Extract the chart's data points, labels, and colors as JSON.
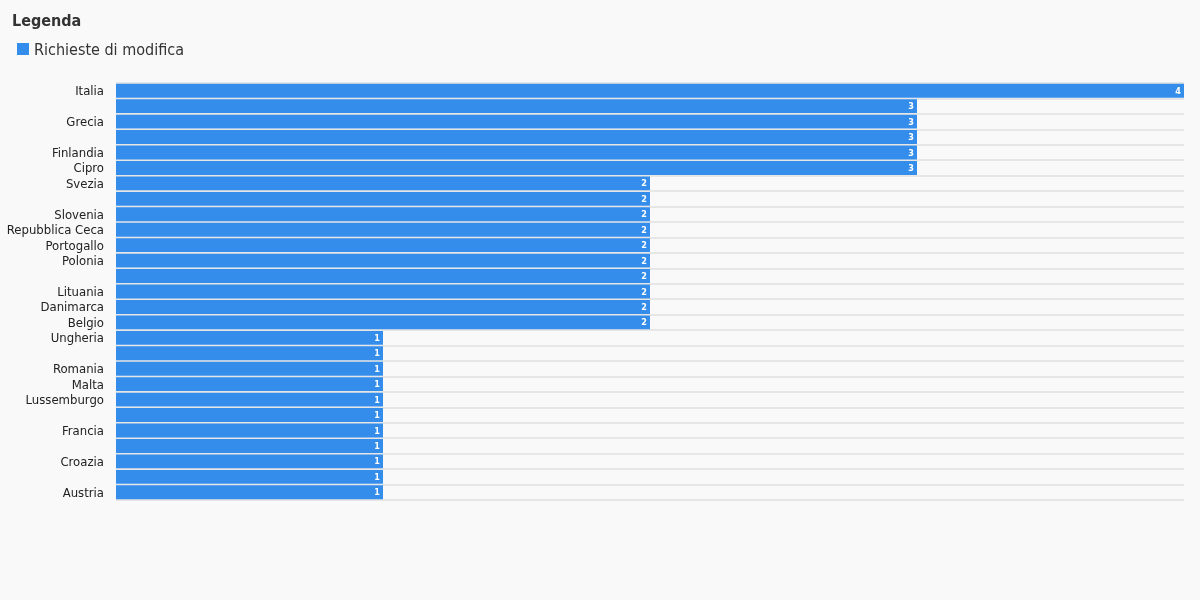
{
  "chart_data": {
    "type": "bar",
    "orientation": "horizontal",
    "legend_title": "Legenda",
    "legend": "top left",
    "grid": "y",
    "data_labels": true,
    "categories": [
      "Italia",
      null,
      "Grecia",
      null,
      "Finlandia",
      "Cipro",
      "Svezia",
      null,
      "Slovenia",
      "Repubblica Ceca",
      "Portogallo",
      "Polonia",
      null,
      "Lituania",
      "Danimarca",
      "Belgio",
      "Ungheria",
      null,
      "Romania",
      "Malta",
      "Lussemburgo",
      null,
      "Francia",
      null,
      "Croazia",
      null,
      "Austria"
    ],
    "series": [
      {
        "name": "Richieste di modifica",
        "color": "#348ceb",
        "values": [
          4,
          3,
          3,
          3,
          3,
          3,
          2,
          2,
          2,
          2,
          2,
          2,
          2,
          2,
          2,
          2,
          1,
          1,
          1,
          1,
          1,
          1,
          1,
          1,
          1,
          1,
          1
        ]
      }
    ]
  }
}
